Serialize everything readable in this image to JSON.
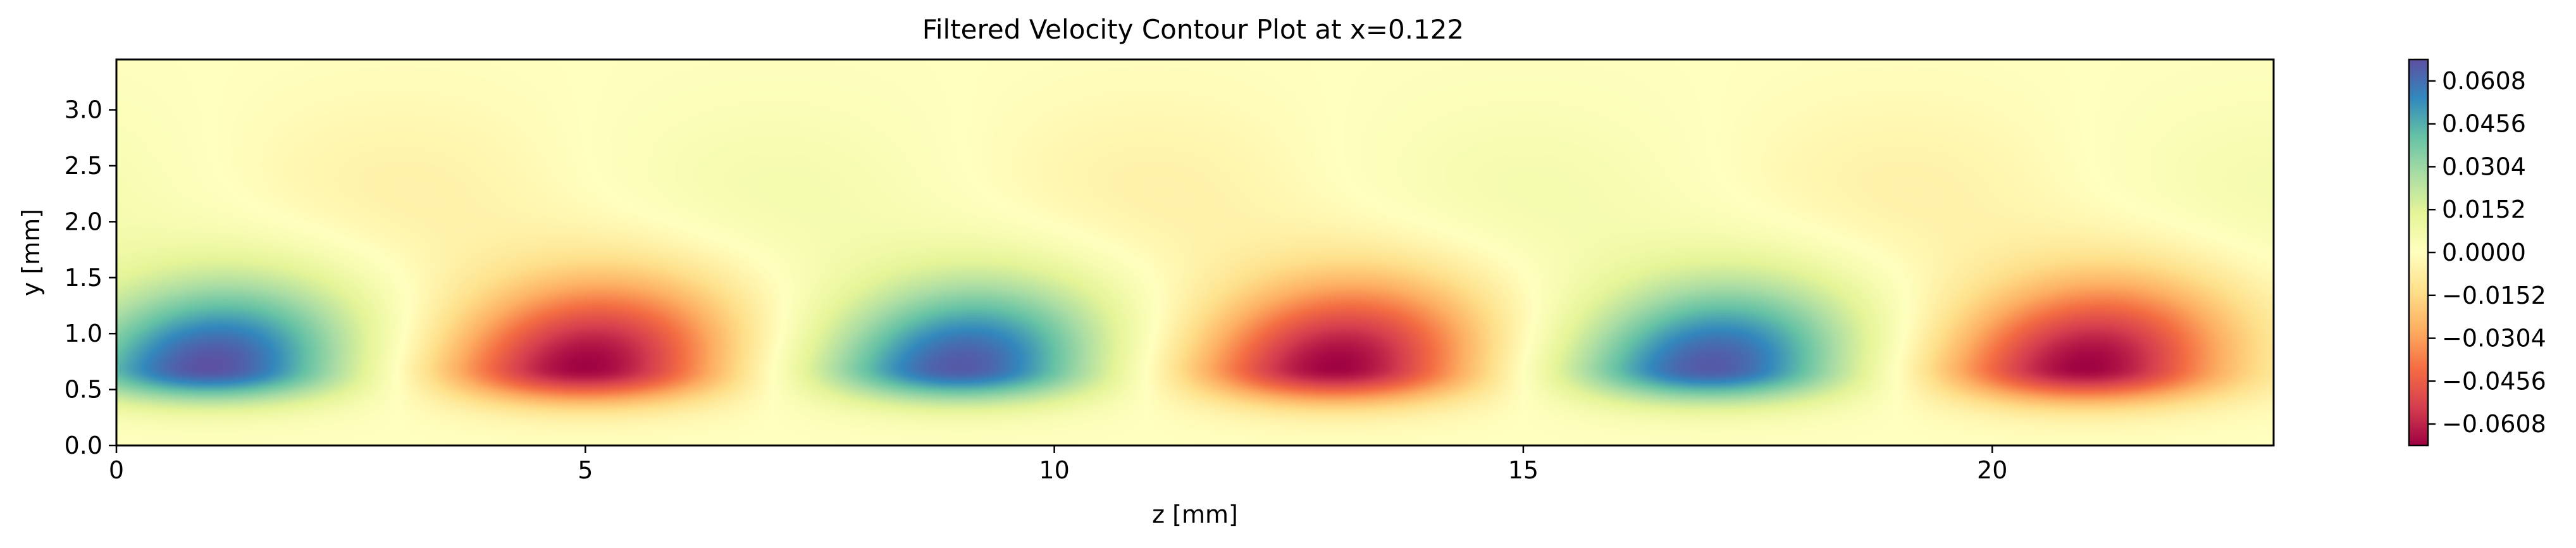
{
  "chart_data": {
    "type": "heatmap",
    "title": "Filtered Velocity Contour Plot at x=0.122",
    "xlabel": "z [mm]",
    "ylabel": "y [mm]",
    "xlim": [
      0,
      23
    ],
    "ylim": [
      0,
      3.45
    ],
    "xticks": [
      0,
      5,
      10,
      15,
      20
    ],
    "xtick_labels": [
      "0",
      "5",
      "10",
      "15",
      "20"
    ],
    "yticks": [
      0.0,
      0.5,
      1.0,
      1.5,
      2.0,
      2.5,
      3.0
    ],
    "ytick_labels": [
      "0.0",
      "0.5",
      "1.0",
      "1.5",
      "2.0",
      "2.5",
      "3.0"
    ],
    "colormap": "Spectral",
    "colorbar": {
      "vmin": -0.0684,
      "vmax": 0.0684,
      "ticks": [
        0.0608,
        0.0456,
        0.0304,
        0.0152,
        0.0,
        -0.0152,
        -0.0304,
        -0.0456,
        -0.0608
      ],
      "tick_labels": [
        "0.0608",
        "0.0456",
        "0.0304",
        "0.0152",
        "0.0000",
        "−0.0152",
        "−0.0304",
        "−0.0456",
        "−0.0608"
      ]
    },
    "field": {
      "description_of_structures": "alternating positive/negative velocity streaks centered near y=0.7 mm",
      "structures": [
        {
          "z": 1.0,
          "y": 0.7,
          "value": 0.068
        },
        {
          "z": 5.0,
          "y": 0.7,
          "value": -0.068
        },
        {
          "z": 9.0,
          "y": 0.7,
          "value": 0.066
        },
        {
          "z": 13.0,
          "y": 0.7,
          "value": -0.068
        },
        {
          "z": 17.0,
          "y": 0.7,
          "value": 0.066
        },
        {
          "z": 21.0,
          "y": 0.7,
          "value": -0.068
        }
      ],
      "wavelength_z": 8.0
    }
  }
}
